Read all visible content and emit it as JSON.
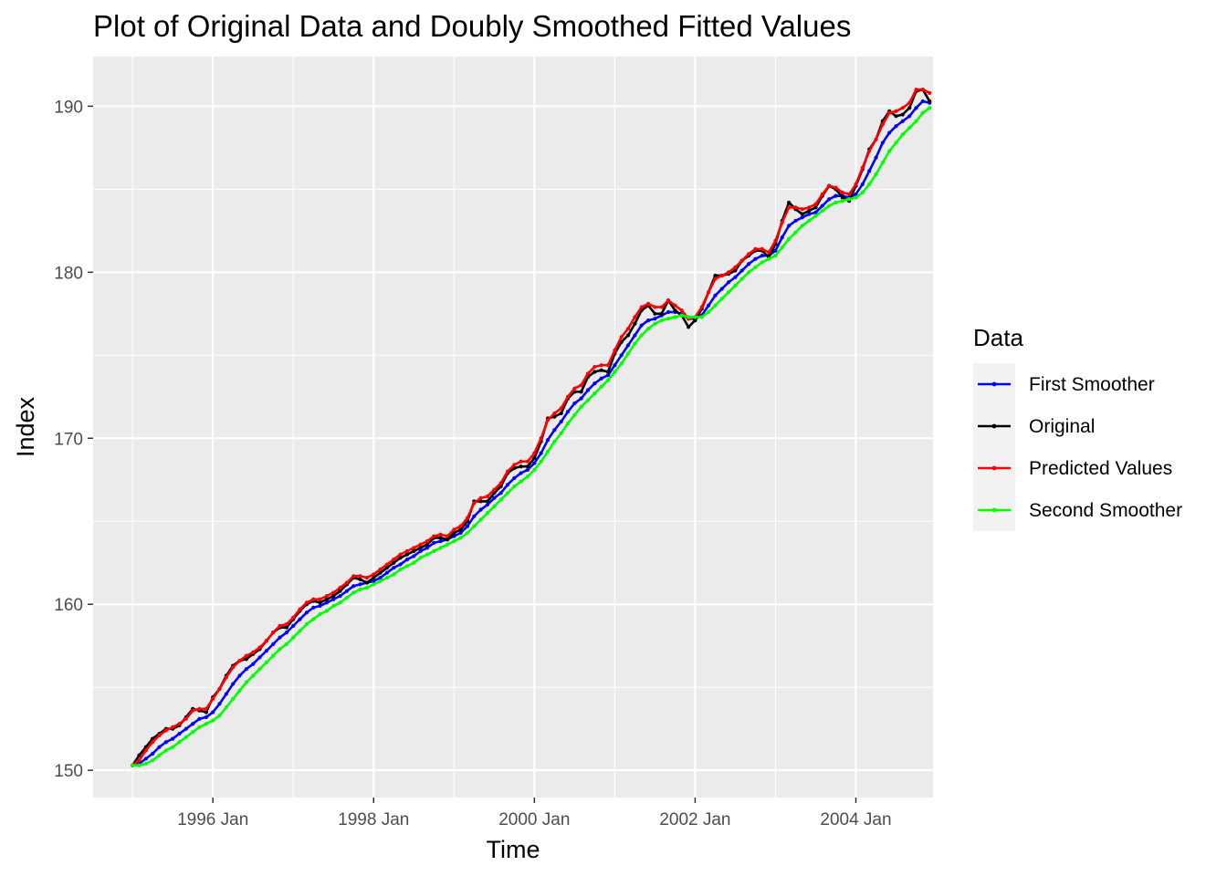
{
  "chart_data": {
    "type": "line",
    "title": "Plot of Original Data and Doubly Smoothed Fitted Values",
    "xlabel": "Time",
    "ylabel": "Index",
    "x_ticks": [
      "1996 Jan",
      "1998 Jan",
      "2000 Jan",
      "2002 Jan",
      "2004 Jan"
    ],
    "x_tick_values": [
      1996.0,
      1998.0,
      2000.0,
      2002.0,
      2004.0
    ],
    "y_ticks": [
      "150",
      "160",
      "170",
      "180",
      "190"
    ],
    "y_tick_values": [
      150,
      160,
      170,
      180,
      190
    ],
    "xlim": [
      1994.51,
      2004.96
    ],
    "ylim": [
      148.36,
      192.99
    ],
    "grid": true,
    "legend": {
      "title": "Data",
      "position": "right",
      "entries": [
        "First Smoother",
        "Original",
        "Predicted Values",
        "Second Smoother"
      ]
    },
    "series": [
      {
        "name": "Original",
        "color": "#000000",
        "x": [
          1995.0,
          1995.083,
          1995.167,
          1995.25,
          1995.333,
          1995.417,
          1995.5,
          1995.583,
          1995.667,
          1995.75,
          1995.833,
          1995.917,
          1996.0,
          1996.083,
          1996.167,
          1996.25,
          1996.333,
          1996.417,
          1996.5,
          1996.583,
          1996.667,
          1996.75,
          1996.833,
          1996.917,
          1997.0,
          1997.083,
          1997.167,
          1997.25,
          1997.333,
          1997.417,
          1997.5,
          1997.583,
          1997.667,
          1997.75,
          1997.833,
          1997.917,
          1998.0,
          1998.083,
          1998.167,
          1998.25,
          1998.333,
          1998.417,
          1998.5,
          1998.583,
          1998.667,
          1998.75,
          1998.833,
          1998.917,
          1999.0,
          1999.083,
          1999.167,
          1999.25,
          1999.333,
          1999.417,
          1999.5,
          1999.583,
          1999.667,
          1999.75,
          1999.833,
          1999.917,
          2000.0,
          2000.083,
          2000.167,
          2000.25,
          2000.333,
          2000.417,
          2000.5,
          2000.583,
          2000.667,
          2000.75,
          2000.833,
          2000.917,
          2001.0,
          2001.083,
          2001.167,
          2001.25,
          2001.333,
          2001.417,
          2001.5,
          2001.583,
          2001.667,
          2001.75,
          2001.833,
          2001.917,
          2002.0,
          2002.083,
          2002.167,
          2002.25,
          2002.333,
          2002.417,
          2002.5,
          2002.583,
          2002.667,
          2002.75,
          2002.833,
          2002.917,
          2003.0,
          2003.083,
          2003.167,
          2003.25,
          2003.333,
          2003.417,
          2003.5,
          2003.583,
          2003.667,
          2003.75,
          2003.833,
          2003.917,
          2004.0,
          2004.083,
          2004.167,
          2004.25,
          2004.333,
          2004.417,
          2004.5,
          2004.583,
          2004.667,
          2004.75,
          2004.833,
          2004.917
        ],
        "y": [
          150.3,
          150.9,
          151.4,
          151.9,
          152.2,
          152.5,
          152.5,
          152.7,
          153.2,
          153.7,
          153.6,
          153.5,
          154.4,
          154.9,
          155.7,
          156.3,
          156.6,
          156.7,
          157.0,
          157.3,
          157.8,
          158.3,
          158.6,
          158.6,
          159.1,
          159.6,
          160.0,
          160.2,
          160.1,
          160.3,
          160.5,
          160.8,
          161.2,
          161.6,
          161.5,
          161.3,
          161.6,
          161.9,
          162.2,
          162.5,
          162.8,
          163.0,
          163.2,
          163.4,
          163.6,
          164.0,
          164.0,
          163.9,
          164.3,
          164.5,
          165.0,
          166.2,
          166.2,
          166.2,
          166.7,
          167.1,
          167.9,
          168.2,
          168.3,
          168.3,
          168.8,
          169.8,
          171.2,
          171.3,
          171.5,
          172.4,
          172.8,
          172.8,
          173.7,
          174.0,
          174.1,
          174.0,
          175.1,
          175.8,
          176.2,
          176.9,
          177.7,
          178.0,
          177.5,
          177.5,
          178.3,
          177.7,
          177.4,
          176.7,
          177.1,
          177.8,
          178.8,
          179.8,
          179.8,
          179.9,
          180.1,
          180.7,
          181.0,
          181.3,
          181.3,
          180.9,
          181.7,
          183.1,
          184.2,
          183.8,
          183.5,
          183.7,
          183.9,
          184.6,
          185.2,
          185.0,
          184.5,
          184.3,
          185.2,
          186.2,
          187.4,
          188.0,
          189.1,
          189.7,
          189.4,
          189.5,
          189.9,
          190.9,
          191.0,
          190.3
        ]
      },
      {
        "name": "First Smoother",
        "color": "#0000ff",
        "x": [
          1995.0,
          1995.083,
          1995.167,
          1995.25,
          1995.333,
          1995.417,
          1995.5,
          1995.583,
          1995.667,
          1995.75,
          1995.833,
          1995.917,
          1996.0,
          1996.083,
          1996.167,
          1996.25,
          1996.333,
          1996.417,
          1996.5,
          1996.583,
          1996.667,
          1996.75,
          1996.833,
          1996.917,
          1997.0,
          1997.083,
          1997.167,
          1997.25,
          1997.333,
          1997.417,
          1997.5,
          1997.583,
          1997.667,
          1997.75,
          1997.833,
          1997.917,
          1998.0,
          1998.083,
          1998.167,
          1998.25,
          1998.333,
          1998.417,
          1998.5,
          1998.583,
          1998.667,
          1998.75,
          1998.833,
          1998.917,
          1999.0,
          1999.083,
          1999.167,
          1999.25,
          1999.333,
          1999.417,
          1999.5,
          1999.583,
          1999.667,
          1999.75,
          1999.833,
          1999.917,
          2000.0,
          2000.083,
          2000.167,
          2000.25,
          2000.333,
          2000.417,
          2000.5,
          2000.583,
          2000.667,
          2000.75,
          2000.833,
          2000.917,
          2001.0,
          2001.083,
          2001.167,
          2001.25,
          2001.333,
          2001.417,
          2001.5,
          2001.583,
          2001.667,
          2001.75,
          2001.833,
          2001.917,
          2002.0,
          2002.083,
          2002.167,
          2002.25,
          2002.333,
          2002.417,
          2002.5,
          2002.583,
          2002.667,
          2002.75,
          2002.833,
          2002.917,
          2003.0,
          2003.083,
          2003.167,
          2003.25,
          2003.333,
          2003.417,
          2003.5,
          2003.583,
          2003.667,
          2003.75,
          2003.833,
          2003.917,
          2004.0,
          2004.083,
          2004.167,
          2004.25,
          2004.333,
          2004.417,
          2004.5,
          2004.583,
          2004.667,
          2004.75,
          2004.833,
          2004.917
        ],
        "y": [
          150.3,
          150.4,
          150.7,
          151.0,
          151.4,
          151.7,
          151.9,
          152.2,
          152.5,
          152.8,
          153.1,
          153.2,
          153.5,
          154.0,
          154.6,
          155.2,
          155.7,
          156.1,
          156.4,
          156.8,
          157.2,
          157.6,
          158.0,
          158.3,
          158.7,
          159.1,
          159.5,
          159.8,
          159.9,
          160.1,
          160.3,
          160.5,
          160.8,
          161.1,
          161.2,
          161.3,
          161.4,
          161.6,
          161.9,
          162.2,
          162.4,
          162.7,
          162.9,
          163.2,
          163.4,
          163.7,
          163.8,
          163.9,
          164.1,
          164.3,
          164.7,
          165.3,
          165.7,
          166.0,
          166.4,
          166.7,
          167.2,
          167.6,
          167.9,
          168.1,
          168.5,
          169.1,
          169.9,
          170.5,
          171.0,
          171.6,
          172.1,
          172.4,
          172.9,
          173.3,
          173.6,
          173.8,
          174.4,
          175.0,
          175.6,
          176.2,
          176.8,
          177.1,
          177.2,
          177.4,
          177.6,
          177.6,
          177.5,
          177.2,
          177.2,
          177.4,
          178.0,
          178.6,
          179.0,
          179.4,
          179.7,
          180.1,
          180.5,
          180.8,
          181.0,
          181.0,
          181.3,
          182.1,
          182.8,
          183.1,
          183.3,
          183.5,
          183.6,
          184.0,
          184.4,
          184.6,
          184.6,
          184.5,
          184.7,
          185.3,
          186.1,
          186.9,
          187.8,
          188.4,
          188.8,
          189.1,
          189.4,
          189.9,
          190.3,
          190.2
        ]
      },
      {
        "name": "Predicted Values",
        "color": "#ff0000",
        "x": [
          1995.0,
          1995.083,
          1995.167,
          1995.25,
          1995.333,
          1995.417,
          1995.5,
          1995.583,
          1995.667,
          1995.75,
          1995.833,
          1995.917,
          1996.0,
          1996.083,
          1996.167,
          1996.25,
          1996.333,
          1996.417,
          1996.5,
          1996.583,
          1996.667,
          1996.75,
          1996.833,
          1996.917,
          1997.0,
          1997.083,
          1997.167,
          1997.25,
          1997.333,
          1997.417,
          1997.5,
          1997.583,
          1997.667,
          1997.75,
          1997.833,
          1997.917,
          1998.0,
          1998.083,
          1998.167,
          1998.25,
          1998.333,
          1998.417,
          1998.5,
          1998.583,
          1998.667,
          1998.75,
          1998.833,
          1998.917,
          1999.0,
          1999.083,
          1999.167,
          1999.25,
          1999.333,
          1999.417,
          1999.5,
          1999.583,
          1999.667,
          1999.75,
          1999.833,
          1999.917,
          2000.0,
          2000.083,
          2000.167,
          2000.25,
          2000.333,
          2000.417,
          2000.5,
          2000.583,
          2000.667,
          2000.75,
          2000.833,
          2000.917,
          2001.0,
          2001.083,
          2001.167,
          2001.25,
          2001.333,
          2001.417,
          2001.5,
          2001.583,
          2001.667,
          2001.75,
          2001.833,
          2001.917,
          2002.0,
          2002.083,
          2002.167,
          2002.25,
          2002.333,
          2002.417,
          2002.5,
          2002.583,
          2002.667,
          2002.75,
          2002.833,
          2002.917,
          2003.0,
          2003.083,
          2003.167,
          2003.25,
          2003.333,
          2003.417,
          2003.5,
          2003.583,
          2003.667,
          2003.75,
          2003.833,
          2003.917,
          2004.0,
          2004.083,
          2004.167,
          2004.25,
          2004.333,
          2004.417,
          2004.5,
          2004.583,
          2004.667,
          2004.75,
          2004.833,
          2004.917
        ],
        "y": [
          150.3,
          150.6,
          151.2,
          151.7,
          152.1,
          152.4,
          152.6,
          152.8,
          153.1,
          153.6,
          153.7,
          153.7,
          154.3,
          154.9,
          155.6,
          156.2,
          156.6,
          156.9,
          157.1,
          157.4,
          157.8,
          158.3,
          158.7,
          158.8,
          159.2,
          159.7,
          160.1,
          160.3,
          160.3,
          160.5,
          160.7,
          161.0,
          161.3,
          161.7,
          161.7,
          161.6,
          161.8,
          162.1,
          162.4,
          162.7,
          163.0,
          163.2,
          163.4,
          163.6,
          163.8,
          164.1,
          164.2,
          164.1,
          164.5,
          164.7,
          165.2,
          166.1,
          166.4,
          166.5,
          166.9,
          167.3,
          168.0,
          168.4,
          168.6,
          168.6,
          169.1,
          170.0,
          171.1,
          171.5,
          171.8,
          172.5,
          173.0,
          173.2,
          173.9,
          174.3,
          174.4,
          174.4,
          175.3,
          176.1,
          176.6,
          177.3,
          177.9,
          178.1,
          177.9,
          177.9,
          178.3,
          178.0,
          177.7,
          177.2,
          177.3,
          177.9,
          178.8,
          179.6,
          179.8,
          180.0,
          180.3,
          180.7,
          181.1,
          181.4,
          181.4,
          181.2,
          181.9,
          183.0,
          183.9,
          183.9,
          183.8,
          183.9,
          184.1,
          184.7,
          185.2,
          185.1,
          184.8,
          184.7,
          185.3,
          186.3,
          187.3,
          188.0,
          188.9,
          189.6,
          189.7,
          189.9,
          190.2,
          191.0,
          191.0,
          190.8
        ]
      },
      {
        "name": "Second Smoother",
        "color": "#00ff00",
        "x": [
          1995.0,
          1995.083,
          1995.167,
          1995.25,
          1995.333,
          1995.417,
          1995.5,
          1995.583,
          1995.667,
          1995.75,
          1995.833,
          1995.917,
          1996.0,
          1996.083,
          1996.167,
          1996.25,
          1996.333,
          1996.417,
          1996.5,
          1996.583,
          1996.667,
          1996.75,
          1996.833,
          1996.917,
          1997.0,
          1997.083,
          1997.167,
          1997.25,
          1997.333,
          1997.417,
          1997.5,
          1997.583,
          1997.667,
          1997.75,
          1997.833,
          1997.917,
          1998.0,
          1998.083,
          1998.167,
          1998.25,
          1998.333,
          1998.417,
          1998.5,
          1998.583,
          1998.667,
          1998.75,
          1998.833,
          1998.917,
          1999.0,
          1999.083,
          1999.167,
          1999.25,
          1999.333,
          1999.417,
          1999.5,
          1999.583,
          1999.667,
          1999.75,
          1999.833,
          1999.917,
          2000.0,
          2000.083,
          2000.167,
          2000.25,
          2000.333,
          2000.417,
          2000.5,
          2000.583,
          2000.667,
          2000.75,
          2000.833,
          2000.917,
          2001.0,
          2001.083,
          2001.167,
          2001.25,
          2001.333,
          2001.417,
          2001.5,
          2001.583,
          2001.667,
          2001.75,
          2001.833,
          2001.917,
          2002.0,
          2002.083,
          2002.167,
          2002.25,
          2002.333,
          2002.417,
          2002.5,
          2002.583,
          2002.667,
          2002.75,
          2002.833,
          2002.917,
          2003.0,
          2003.083,
          2003.167,
          2003.25,
          2003.333,
          2003.417,
          2003.5,
          2003.583,
          2003.667,
          2003.75,
          2003.833,
          2003.917,
          2004.0,
          2004.083,
          2004.167,
          2004.25,
          2004.333,
          2004.417,
          2004.5,
          2004.583,
          2004.667,
          2004.75,
          2004.833,
          2004.917
        ],
        "y": [
          150.3,
          150.3,
          150.4,
          150.6,
          150.9,
          151.2,
          151.4,
          151.7,
          152.0,
          152.3,
          152.6,
          152.8,
          153.0,
          153.3,
          153.8,
          154.3,
          154.8,
          155.3,
          155.7,
          156.1,
          156.5,
          156.9,
          157.3,
          157.6,
          158.0,
          158.4,
          158.8,
          159.1,
          159.4,
          159.6,
          159.9,
          160.1,
          160.4,
          160.7,
          160.9,
          161.0,
          161.2,
          161.4,
          161.6,
          161.8,
          162.1,
          162.3,
          162.5,
          162.8,
          163.0,
          163.2,
          163.4,
          163.6,
          163.8,
          164.0,
          164.3,
          164.7,
          165.1,
          165.5,
          165.9,
          166.3,
          166.7,
          167.1,
          167.4,
          167.7,
          168.1,
          168.6,
          169.2,
          169.8,
          170.3,
          170.9,
          171.4,
          171.9,
          172.3,
          172.7,
          173.1,
          173.5,
          174.0,
          174.5,
          175.1,
          175.7,
          176.2,
          176.6,
          176.9,
          177.1,
          177.2,
          177.3,
          177.4,
          177.3,
          177.3,
          177.3,
          177.6,
          178.0,
          178.4,
          178.8,
          179.2,
          179.6,
          180.0,
          180.3,
          180.6,
          180.8,
          181.0,
          181.5,
          182.0,
          182.4,
          182.8,
          183.1,
          183.4,
          183.7,
          184.0,
          184.2,
          184.3,
          184.4,
          184.5,
          184.8,
          185.3,
          185.9,
          186.6,
          187.3,
          187.8,
          188.3,
          188.7,
          189.1,
          189.6,
          189.9
        ]
      }
    ]
  }
}
